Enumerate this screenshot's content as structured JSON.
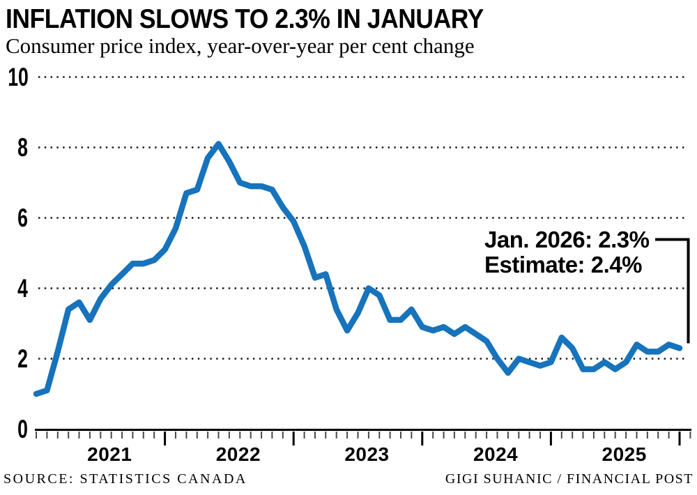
{
  "header": {
    "title": "INFLATION SLOWS TO 2.3% IN JANUARY",
    "subtitle": "Consumer price index, year-over-year per cent change"
  },
  "footer": {
    "source": "SOURCE: STATISTICS CANADA",
    "credit": "GIGI SUHANIC / FINANCIAL POST"
  },
  "chart_data": {
    "type": "line",
    "title": "INFLATION SLOWS TO 2.3% IN JANUARY",
    "subtitle": "Consumer price index, year-over-year per cent change",
    "series_name": "Consumer price index, year-over-year per cent change",
    "x_start": "2021-01",
    "x_end": "2026-01",
    "frequency": "monthly",
    "values": [
      1.0,
      1.1,
      2.2,
      3.4,
      3.6,
      3.1,
      3.7,
      4.1,
      4.4,
      4.7,
      4.7,
      4.8,
      5.1,
      5.7,
      6.7,
      6.8,
      7.7,
      8.1,
      7.6,
      7.0,
      6.9,
      6.9,
      6.8,
      6.3,
      5.9,
      5.2,
      4.3,
      4.4,
      3.4,
      2.8,
      3.3,
      4.0,
      3.8,
      3.1,
      3.1,
      3.4,
      2.9,
      2.8,
      2.9,
      2.7,
      2.9,
      2.7,
      2.5,
      2.0,
      1.6,
      2.0,
      1.9,
      1.8,
      1.9,
      2.6,
      2.3,
      1.7,
      1.7,
      1.9,
      1.7,
      1.9,
      2.4,
      2.2,
      2.2,
      2.4,
      2.3
    ],
    "yticks": [
      0,
      2,
      4,
      6,
      8,
      10
    ],
    "ylim": [
      0,
      10
    ],
    "year_labels": [
      "2021",
      "2022",
      "2023",
      "2024",
      "2025"
    ],
    "grid": "dotted horizontal",
    "legend_position": "none",
    "line_color": "#1673BC",
    "annotation": {
      "line1": "Jan. 2026: 2.3%",
      "line2": "Estimate: 2.4%",
      "points_to_x": "2026-01",
      "points_to_value": 2.3,
      "estimate_value": 2.4
    }
  }
}
